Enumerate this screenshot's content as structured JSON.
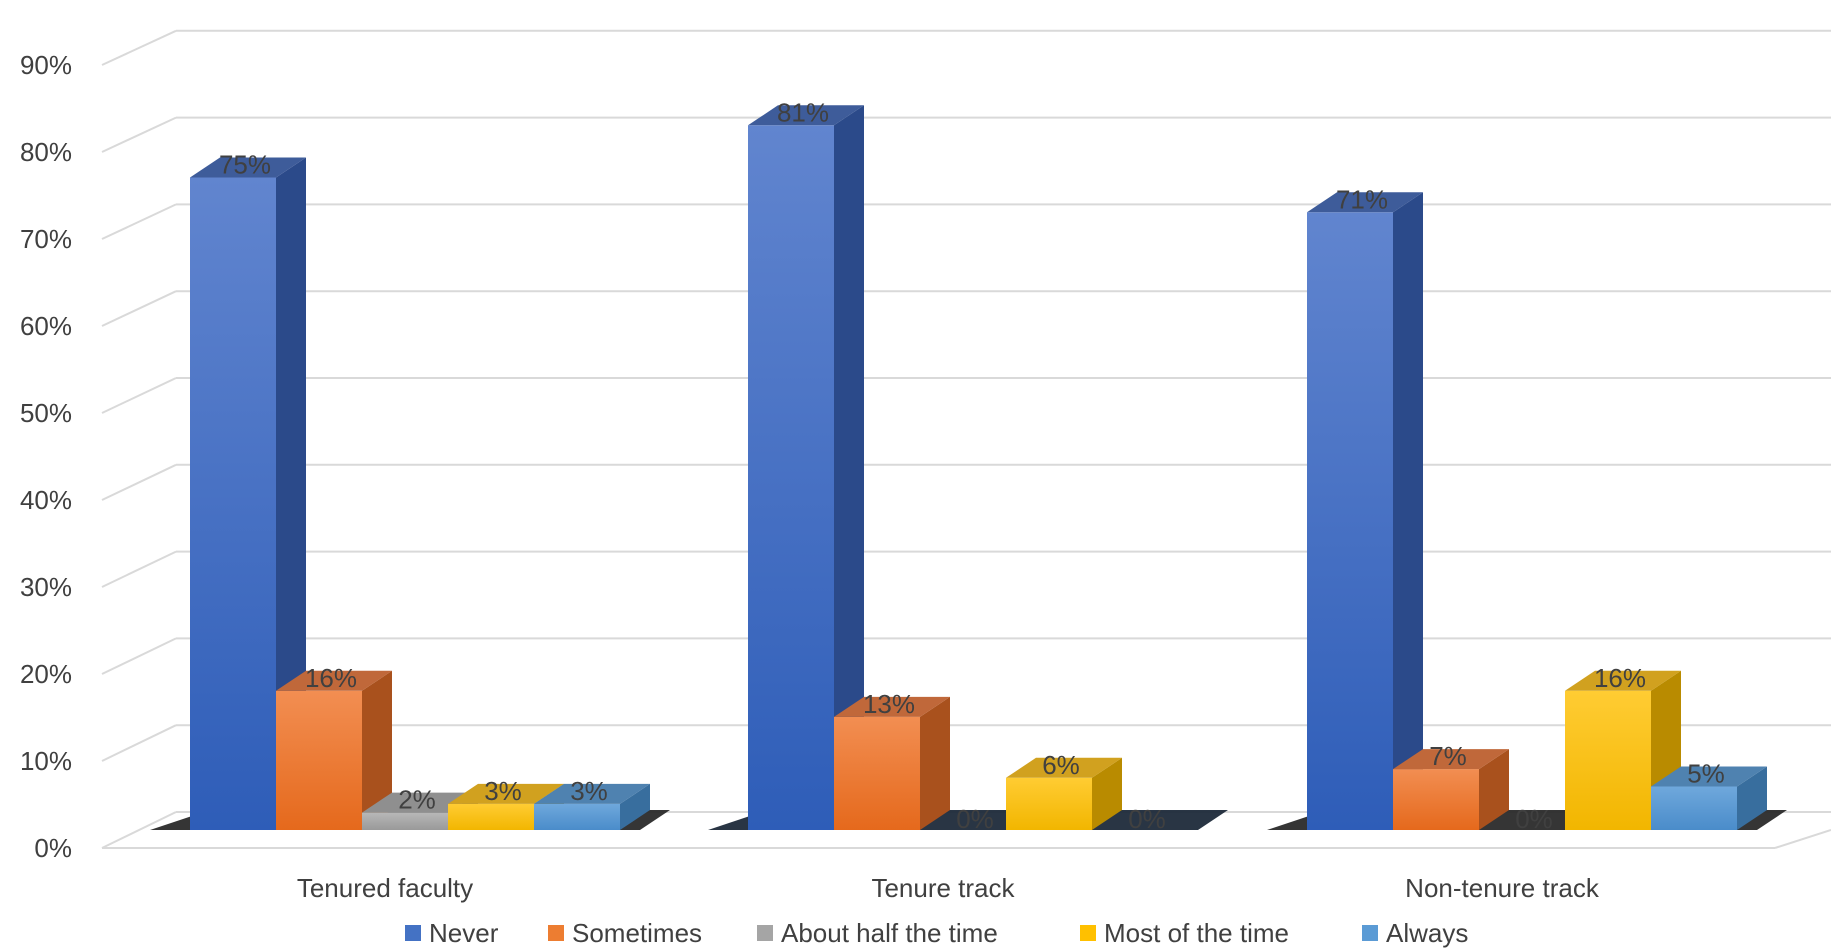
{
  "chart_data": {
    "type": "bar",
    "categories": [
      "Tenured faculty",
      "Tenure track",
      "Non-tenure track"
    ],
    "series": [
      {
        "name": "Never",
        "values": [
          75,
          81,
          71
        ],
        "labels": [
          "75%",
          "81%",
          "71%"
        ],
        "color": "#4472C4"
      },
      {
        "name": "Sometimes",
        "values": [
          16,
          13,
          7
        ],
        "labels": [
          "16%",
          "13%",
          "7%"
        ],
        "color": "#ED7D31"
      },
      {
        "name": "About half the time",
        "values": [
          2,
          0,
          0
        ],
        "labels": [
          "2%",
          "0%",
          "0%"
        ],
        "color": "#A5A5A5"
      },
      {
        "name": "Most of the time",
        "values": [
          3,
          6,
          16
        ],
        "labels": [
          "3%",
          "6%",
          "16%"
        ],
        "color": "#FFC000"
      },
      {
        "name": "Always",
        "values": [
          3,
          0,
          5
        ],
        "labels": [
          "3%",
          "0%",
          "5%"
        ],
        "color": "#5B9BD5"
      }
    ],
    "y_ticks": [
      "0%",
      "10%",
      "20%",
      "30%",
      "40%",
      "50%",
      "60%",
      "70%",
      "80%",
      "90%"
    ],
    "ylim": [
      0,
      100
    ],
    "grid": true,
    "legend_position": "bottom",
    "style": "3d-clustered-column"
  }
}
